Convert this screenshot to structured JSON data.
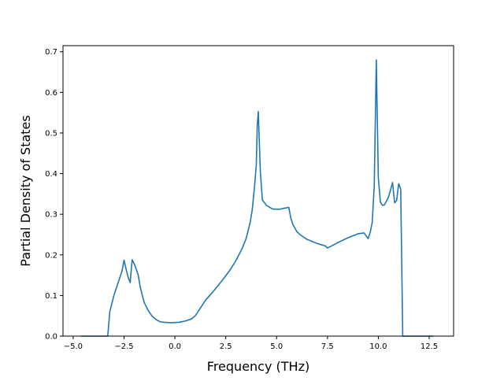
{
  "chart_data": {
    "type": "line",
    "title": "",
    "xlabel": "Frequency (THz)",
    "ylabel": "Partial Density of States",
    "xlim": [
      -5.5,
      13.7
    ],
    "ylim": [
      0.0,
      0.715
    ],
    "xticks": [
      -5.0,
      -2.5,
      0.0,
      2.5,
      5.0,
      7.5,
      10.0,
      12.5
    ],
    "xtick_labels": [
      "−5.0",
      "−2.5",
      "0.0",
      "2.5",
      "5.0",
      "7.5",
      "10.0",
      "12.5"
    ],
    "yticks": [
      0.0,
      0.1,
      0.2,
      0.3,
      0.4,
      0.5,
      0.6,
      0.7
    ],
    "ytick_labels": [
      "0.0",
      "0.1",
      "0.2",
      "0.3",
      "0.4",
      "0.5",
      "0.6",
      "0.7"
    ],
    "grid": false,
    "legend": "none",
    "series": [
      {
        "color": "#1f77b4",
        "x": [
          -4.6,
          -3.3,
          -3.2,
          -3.0,
          -2.8,
          -2.6,
          -2.5,
          -2.4,
          -2.3,
          -2.2,
          -2.1,
          -2.0,
          -1.9,
          -1.8,
          -1.7,
          -1.6,
          -1.5,
          -1.3,
          -1.1,
          -0.9,
          -0.7,
          -0.5,
          -0.2,
          0.2,
          0.5,
          0.8,
          1.0,
          1.2,
          1.5,
          1.8,
          2.1,
          2.4,
          2.7,
          3.0,
          3.3,
          3.5,
          3.7,
          3.8,
          3.9,
          4.0,
          4.05,
          4.1,
          4.2,
          4.3,
          4.5,
          4.8,
          5.1,
          5.4,
          5.6,
          5.7,
          5.8,
          6.0,
          6.2,
          6.5,
          7.0,
          7.4,
          7.5,
          7.7,
          8.0,
          8.5,
          9.0,
          9.3,
          9.5,
          9.6,
          9.7,
          9.8,
          9.9,
          10.0,
          10.1,
          10.2,
          10.3,
          10.5,
          10.7,
          10.8,
          10.9,
          11.0,
          11.1,
          11.2,
          11.3,
          11.4,
          11.5,
          12.0,
          12.7
        ],
        "y": [
          0.0,
          0.0,
          0.06,
          0.1,
          0.13,
          0.16,
          0.187,
          0.165,
          0.145,
          0.132,
          0.188,
          0.178,
          0.165,
          0.15,
          0.12,
          0.1,
          0.082,
          0.062,
          0.048,
          0.04,
          0.035,
          0.034,
          0.033,
          0.034,
          0.037,
          0.042,
          0.05,
          0.065,
          0.088,
          0.105,
          0.123,
          0.142,
          0.162,
          0.186,
          0.215,
          0.24,
          0.28,
          0.31,
          0.36,
          0.42,
          0.52,
          0.553,
          0.405,
          0.335,
          0.322,
          0.313,
          0.312,
          0.315,
          0.317,
          0.29,
          0.275,
          0.257,
          0.248,
          0.238,
          0.228,
          0.222,
          0.217,
          0.222,
          0.23,
          0.242,
          0.252,
          0.254,
          0.24,
          0.255,
          0.28,
          0.37,
          0.68,
          0.39,
          0.33,
          0.322,
          0.323,
          0.342,
          0.378,
          0.328,
          0.334,
          0.375,
          0.362,
          0.0,
          0.0,
          0.0,
          0.0,
          0.0,
          0.0
        ]
      }
    ]
  }
}
